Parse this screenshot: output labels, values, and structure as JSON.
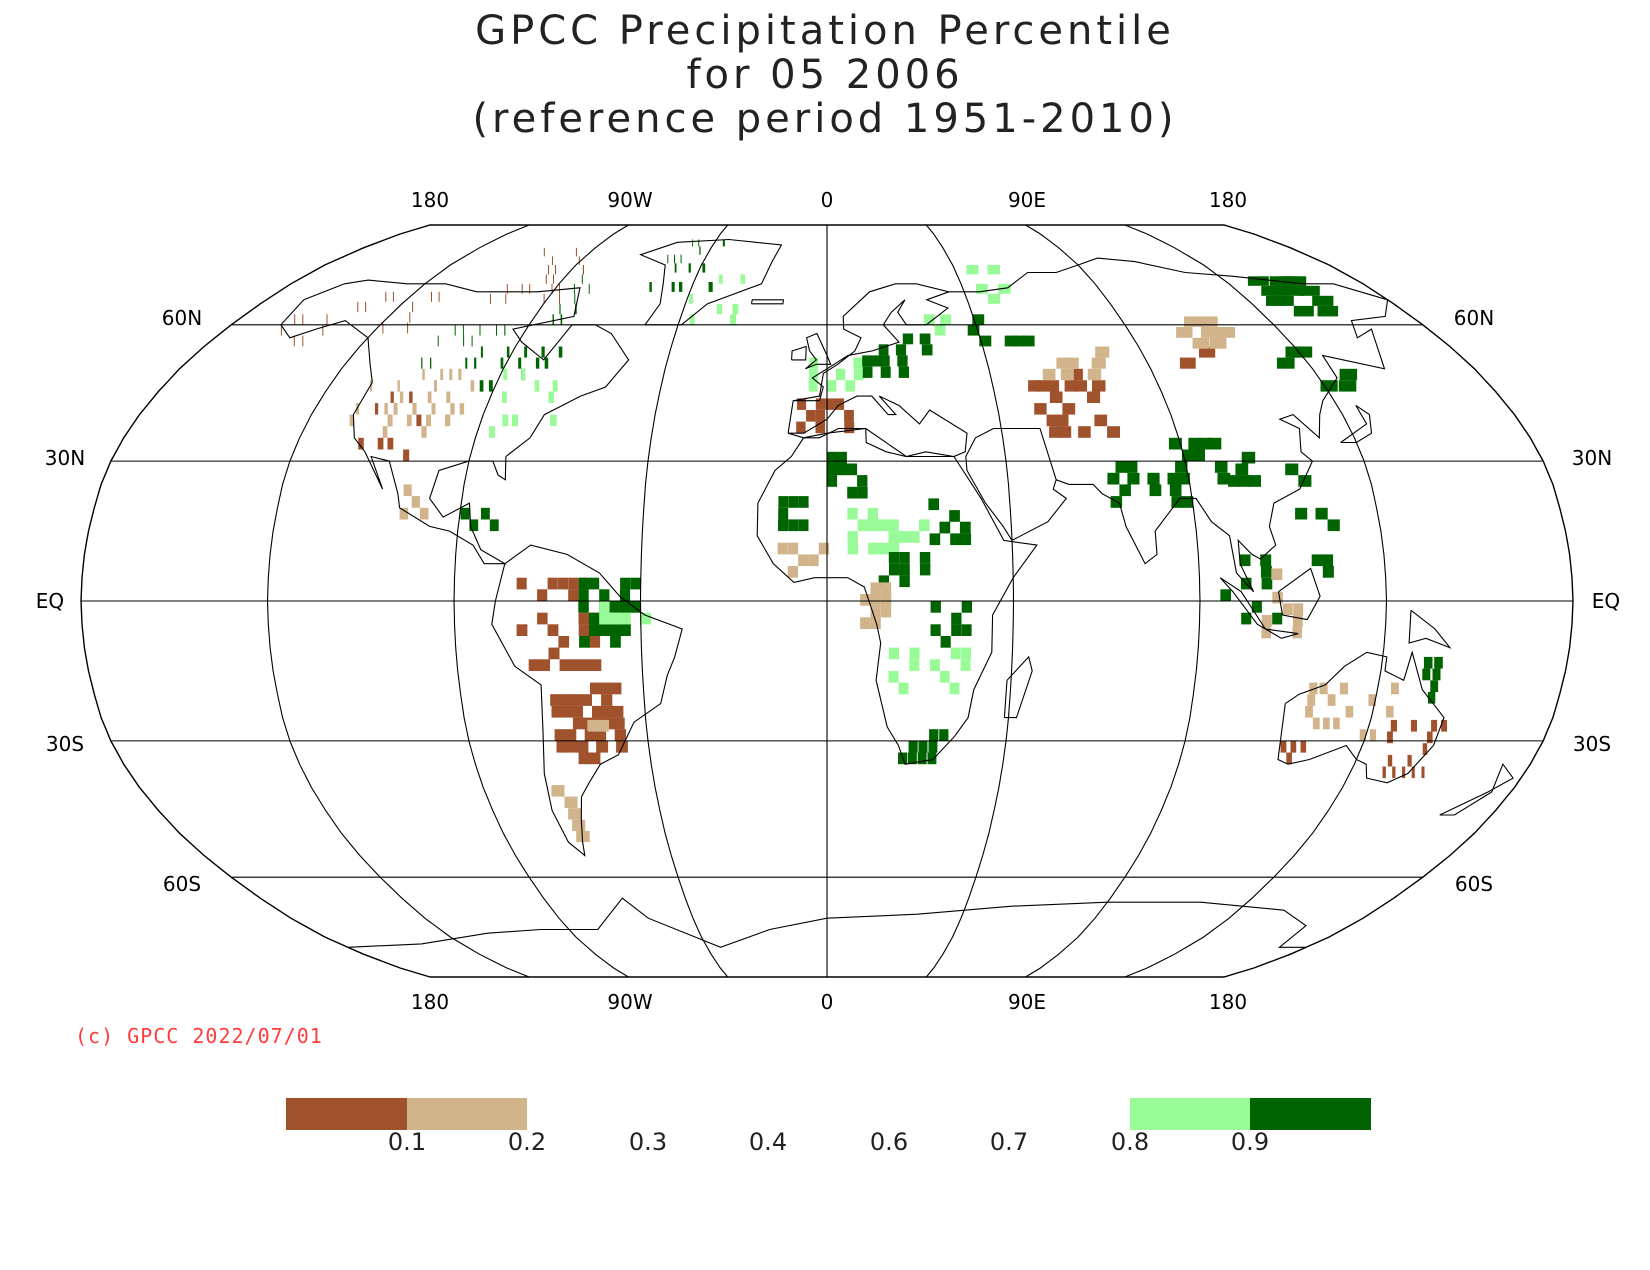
{
  "title": {
    "line1": "GPCC Precipitation Percentile",
    "line2": "for 05 2006",
    "line3": "(reference period 1951-2010)"
  },
  "map": {
    "projection": "Robinson",
    "top_longitude_labels": [
      "180",
      "90W",
      "0",
      "90E",
      "180"
    ],
    "bottom_longitude_labels": [
      "180",
      "90W",
      "0",
      "90E",
      "180"
    ],
    "left_latitude_labels": [
      "60N",
      "30N",
      "EQ",
      "30S",
      "60S"
    ],
    "right_latitude_labels": [
      "60N",
      "30N",
      "EQ",
      "30S",
      "60S"
    ],
    "colors": {
      "very_dry": "#a0522d",
      "dry": "#d2b48c",
      "wet": "#98fb98",
      "very_wet": "#006400",
      "coast": "#000000"
    }
  },
  "copyright": "(c) GPCC 2022/07/01",
  "legend": {
    "labels": [
      "0.1",
      "0.2",
      "0.3",
      "0.4",
      "0.6",
      "0.7",
      "0.8",
      "0.9"
    ],
    "bins": [
      {
        "range": "<0.1",
        "color": "#a0522d"
      },
      {
        "range": "0.1-0.2",
        "color": "#d2b48c"
      },
      {
        "range": "0.2-0.3",
        "color": "#ffffff"
      },
      {
        "range": "0.3-0.4",
        "color": "#ffffff"
      },
      {
        "range": "0.4-0.6",
        "color": "#ffffff"
      },
      {
        "range": "0.6-0.7",
        "color": "#ffffff"
      },
      {
        "range": "0.7-0.8",
        "color": "#ffffff"
      },
      {
        "range": "0.8-0.9",
        "color": "#98fb98"
      },
      {
        "range": ">0.9",
        "color": "#006400"
      }
    ]
  }
}
